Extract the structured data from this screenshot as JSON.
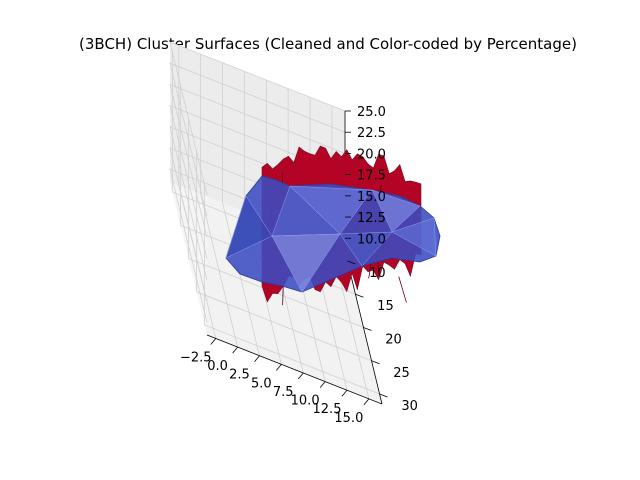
{
  "chart_data": {
    "type": "surface3d",
    "title": "(3BCH) Cluster Surfaces (Cleaned and Color-coded by Percentage)",
    "xlabel": "",
    "ylabel": "",
    "zlabel": "",
    "xlim": [
      -3.5,
      16.5
    ],
    "ylim": [
      8.5,
      31.5
    ],
    "zlim": [
      8.5,
      25.0
    ],
    "x_ticks": [
      -2.5,
      0.0,
      2.5,
      5.0,
      7.5,
      10.0,
      12.5,
      15.0
    ],
    "x_tick_labels": [
      "−2.5",
      "0.0",
      "2.5",
      "5.0",
      "7.5",
      "10.0",
      "12.5",
      "15.0"
    ],
    "y_ticks": [
      10,
      15,
      20,
      25,
      30
    ],
    "y_tick_labels": [
      "10",
      "15",
      "20",
      "25",
      "30"
    ],
    "z_ticks": [
      10.0,
      12.5,
      15.0,
      17.5,
      20.0,
      22.5,
      25.0
    ],
    "z_tick_labels": [
      "10.0",
      "12.5",
      "15.0",
      "17.5",
      "20.0",
      "22.5",
      "25.0"
    ],
    "grid": true,
    "legend": "none",
    "series": [
      {
        "color": "#b40426",
        "z_range": [
          9.0,
          23.0
        ]
      },
      {
        "color": "#3b4cc0",
        "z_range": [
          12.0,
          20.5
        ]
      }
    ]
  }
}
